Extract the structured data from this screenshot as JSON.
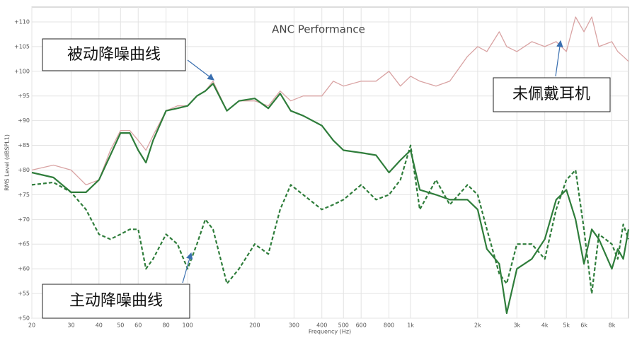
{
  "chart_data": {
    "type": "line",
    "title": "ANC Performance",
    "xlabel": "Frequency (Hz)",
    "ylabel": "RMS Level (dBSPL1)",
    "xscale": "log",
    "grid": true,
    "xlim": [
      20,
      9500
    ],
    "ylim": [
      50,
      113
    ],
    "xticks": [
      20,
      30,
      40,
      50,
      60,
      80,
      100,
      200,
      300,
      400,
      500,
      600,
      800,
      {
        "value": 1000,
        "label": "1k"
      },
      {
        "value": 2000,
        "label": "2k"
      },
      {
        "value": 3000,
        "label": "3k"
      },
      {
        "value": 4000,
        "label": "4k"
      },
      {
        "value": 5000,
        "label": "5k"
      },
      {
        "value": 6000,
        "label": "6k"
      },
      {
        "value": 8000,
        "label": "8k"
      }
    ],
    "yticks": [
      {
        "value": 50,
        "label": "+50"
      },
      {
        "value": 55,
        "label": "+55"
      },
      {
        "value": 60,
        "label": "+60"
      },
      {
        "value": 65,
        "label": "+65"
      },
      {
        "value": 70,
        "label": "+70"
      },
      {
        "value": 75,
        "label": "+75"
      },
      {
        "value": 80,
        "label": "+80"
      },
      {
        "value": 85,
        "label": "+85"
      },
      {
        "value": 90,
        "label": "+90"
      },
      {
        "value": 95,
        "label": "+95"
      },
      {
        "value": 100,
        "label": "+100"
      },
      {
        "value": 105,
        "label": "+105"
      },
      {
        "value": 110,
        "label": "+110"
      }
    ],
    "x": [
      20,
      25,
      30,
      35,
      40,
      45,
      50,
      55,
      60,
      65,
      70,
      80,
      90,
      100,
      110,
      120,
      130,
      150,
      170,
      200,
      230,
      260,
      290,
      330,
      400,
      450,
      500,
      600,
      700,
      800,
      900,
      1000,
      1100,
      1300,
      1500,
      1800,
      2000,
      2200,
      2500,
      2700,
      3000,
      3500,
      4000,
      4500,
      5000,
      5500,
      6000,
      6500,
      7000,
      8000,
      8500,
      9000,
      9500
    ],
    "series": [
      {
        "name": "未佩戴耳机",
        "color": "#d9a3a3",
        "dashed": false,
        "values": [
          80,
          81,
          80,
          77,
          78,
          84,
          88,
          88,
          86,
          84,
          87,
          92,
          93,
          93,
          95,
          96,
          98,
          92,
          94,
          94,
          93,
          96,
          94,
          95,
          95,
          98,
          97,
          98,
          98,
          100,
          97,
          99,
          98,
          97,
          98,
          103,
          105,
          104,
          108,
          105,
          104,
          106,
          105,
          106,
          104,
          111,
          108,
          111,
          105,
          106,
          104,
          103,
          102
        ]
      },
      {
        "name": "被动降噪曲线",
        "color": "#2f7d3b",
        "dashed": false,
        "values": [
          79.5,
          78.5,
          75.5,
          75.5,
          78,
          83,
          87.5,
          87.5,
          84,
          81.5,
          86,
          92,
          92.5,
          93,
          95,
          96,
          97.5,
          92,
          94,
          94.5,
          92.5,
          95.5,
          92,
          91,
          89,
          86,
          84,
          83.5,
          83,
          79.5,
          82,
          84,
          76,
          75,
          74,
          74,
          72,
          64,
          61,
          51,
          60,
          62,
          66,
          74,
          76,
          70,
          61,
          68,
          66,
          60,
          64,
          62,
          68
        ]
      },
      {
        "name": "主动降噪曲线",
        "color": "#2f7d3b",
        "dashed": true,
        "values": [
          77,
          77.5,
          75.5,
          72,
          67,
          66,
          67,
          68,
          68,
          60,
          62,
          67,
          65,
          60,
          65,
          70,
          68,
          57,
          60,
          65,
          63,
          72,
          77,
          75,
          72,
          73,
          74,
          77,
          74,
          75,
          78,
          85,
          72,
          78,
          73,
          77,
          75,
          68,
          59,
          57,
          65,
          65,
          62,
          72,
          78,
          80,
          68,
          55,
          67,
          65,
          62,
          69,
          66
        ]
      }
    ]
  }
}
